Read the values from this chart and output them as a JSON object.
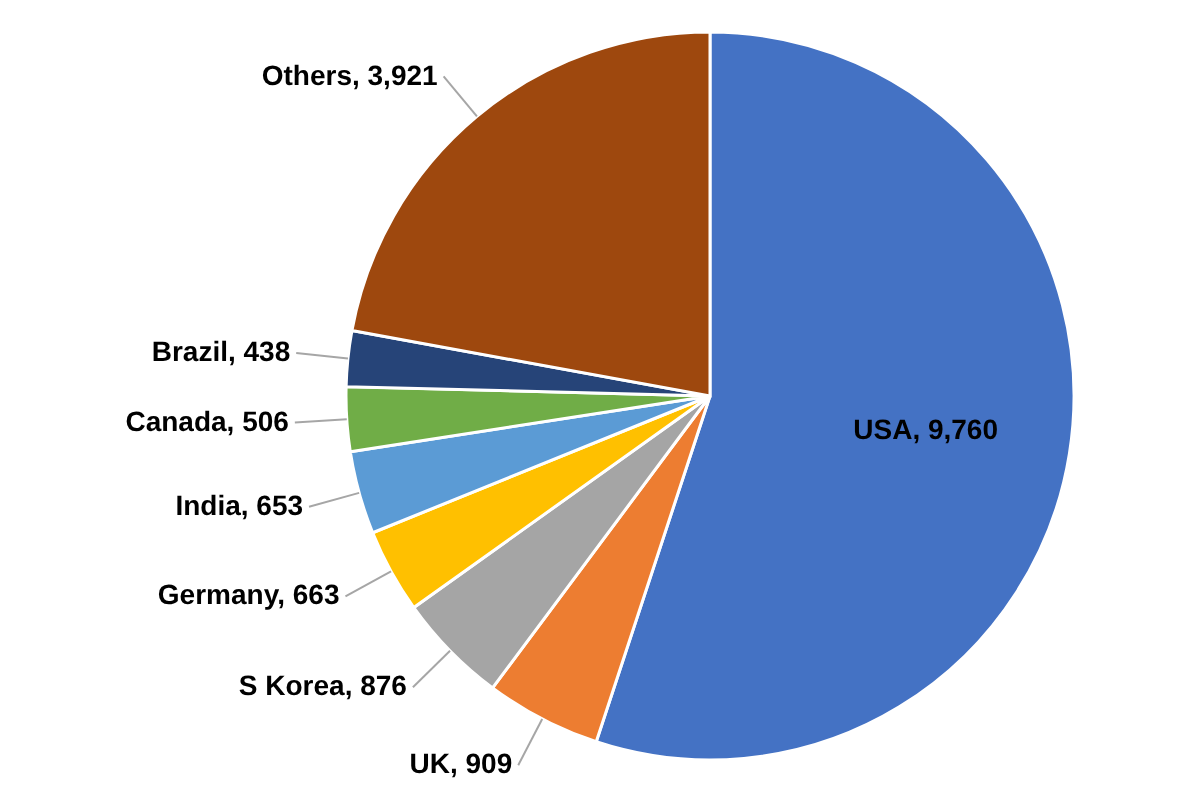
{
  "chart_data": {
    "type": "pie",
    "categories": [
      "USA",
      "UK",
      "S Korea",
      "Germany",
      "India",
      "Canada",
      "Brazil",
      "Others"
    ],
    "values": [
      9760,
      909,
      876,
      663,
      653,
      506,
      438,
      3921
    ],
    "colors": [
      "#4472c4",
      "#ed7d31",
      "#a5a5a5",
      "#ffc000",
      "#5b9bd5",
      "#70ad47",
      "#264478",
      "#9e480e"
    ],
    "value_labels": [
      ", 9,760",
      ", 909",
      ", 876",
      ", 663",
      ", 653",
      ", 506",
      ", 438",
      ", 3,921"
    ]
  }
}
